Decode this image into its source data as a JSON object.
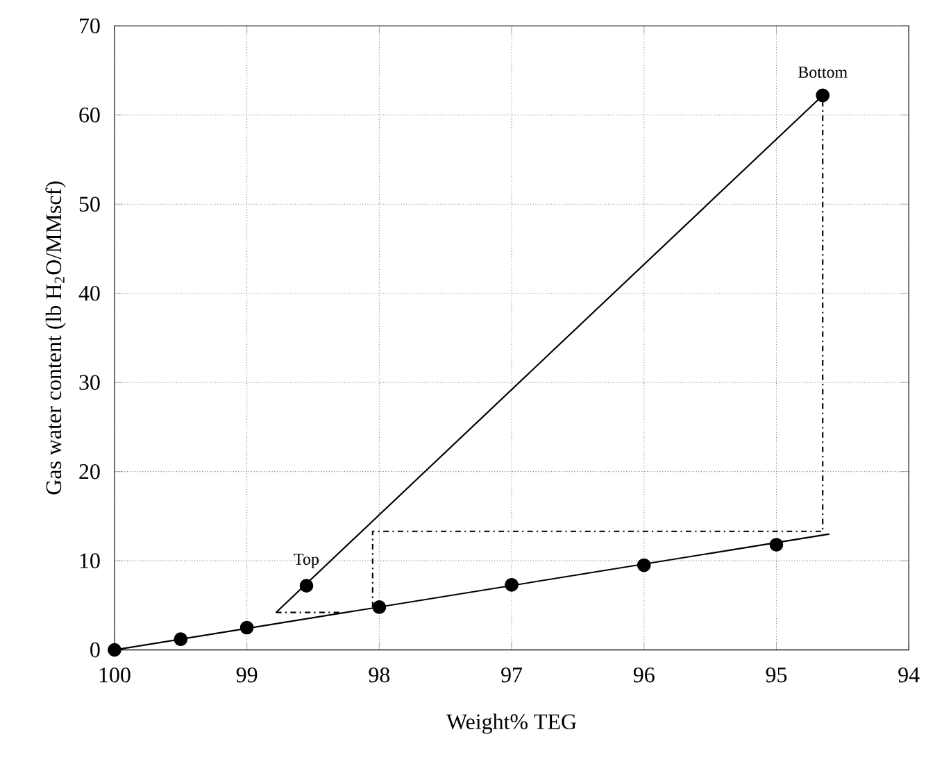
{
  "chart_data": {
    "type": "scatter",
    "xlabel": "Weight% TEG",
    "ylabel": "Gas water content (lb H$_{2}$O/MMscf)",
    "xlim": [
      100,
      94
    ],
    "xticks": [
      100,
      99,
      98,
      97,
      96,
      95,
      94
    ],
    "ylim": [
      0,
      70
    ],
    "yticks": [
      0,
      10,
      20,
      30,
      40,
      50,
      60,
      70
    ],
    "grid": true,
    "marker": "circle",
    "series": [
      {
        "color": "#000000",
        "x": [
          100,
          99.5,
          99,
          98,
          97,
          96,
          95
        ],
        "values": [
          0,
          1.2,
          2.5,
          4.8,
          7.3,
          9.5,
          11.8
        ]
      },
      {
        "type": "line",
        "color": "#000000",
        "marker": "none",
        "x": [
          100,
          94.6
        ],
        "values": [
          0,
          13
        ]
      },
      {
        "type": "line",
        "color": "#000000",
        "marker": "none",
        "x": [
          98.78,
          94.65
        ],
        "values": [
          4.2,
          62.2
        ]
      },
      {
        "type": "scatter",
        "color": "#000000",
        "x": [
          98.55,
          94.65
        ],
        "values": [
          7.2,
          62.2
        ]
      },
      {
        "type": "line",
        "color": "#000000",
        "marker": "none",
        "line_style": "dashed",
        "x": [
          98.05,
          98.05,
          94.65,
          94.65
        ],
        "values": [
          4.8,
          13.3,
          13.3,
          62.2
        ]
      },
      {
        "type": "line",
        "color": "#000000",
        "marker": "none",
        "line_style": "dashed",
        "x": [
          98.78,
          98.3
        ],
        "values": [
          4.2,
          4.2
        ]
      }
    ],
    "annotations": [
      {
        "text": "Top",
        "x": 98.55,
        "y": 7.2
      },
      {
        "text": "Bottom",
        "x": 94.65,
        "y": 62.2
      }
    ]
  }
}
